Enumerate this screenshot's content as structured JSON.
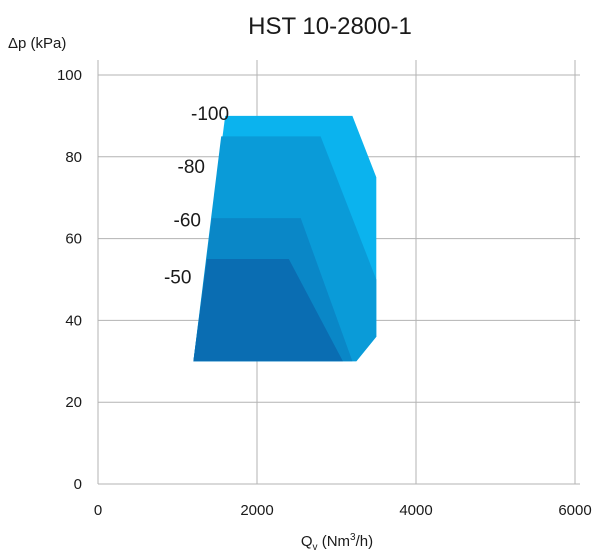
{
  "chart_data": {
    "type": "area",
    "title": "HST 10-2800-1",
    "ylabel": "Δp (kPa)",
    "xlabel": {
      "main": "Q",
      "sub": "v",
      "unit_pre": " (Nm",
      "sup": "3",
      "unit_post": "/h)"
    },
    "xlim": [
      0,
      6000
    ],
    "ylim": [
      0,
      100
    ],
    "x_ticks": [
      "0",
      "2000",
      "4000",
      "6000"
    ],
    "y_ticks": [
      "0",
      "20",
      "40",
      "60",
      "80",
      "100"
    ],
    "x_tick_values": [
      0,
      2000,
      4000,
      6000
    ],
    "y_tick_values": [
      0,
      20,
      40,
      60,
      80,
      100
    ],
    "grid": true,
    "series": [
      {
        "label": "-100",
        "color": "#0bb3ee",
        "points": [
          [
            1600,
            90
          ],
          [
            3200,
            90
          ],
          [
            3500,
            75
          ],
          [
            3500,
            36
          ],
          [
            3250,
            30
          ],
          [
            1200,
            30
          ]
        ]
      },
      {
        "label": "-80",
        "color": "#0a9bd8",
        "points": [
          [
            1550,
            85
          ],
          [
            2800,
            85
          ],
          [
            3500,
            50
          ],
          [
            3500,
            36
          ],
          [
            3250,
            30
          ],
          [
            1200,
            30
          ]
        ]
      },
      {
        "label": "-60",
        "color": "#0a87c7",
        "points": [
          [
            1430,
            65
          ],
          [
            2550,
            65
          ],
          [
            3200,
            30
          ],
          [
            1200,
            30
          ]
        ]
      },
      {
        "label": "-50",
        "color": "#0a6db2",
        "points": [
          [
            1370,
            55
          ],
          [
            2400,
            55
          ],
          [
            3080,
            30
          ],
          [
            1200,
            30
          ]
        ]
      }
    ],
    "annotations": [
      {
        "text": "-100",
        "x": 1170,
        "y": 89
      },
      {
        "text": "-80",
        "x": 1000,
        "y": 76
      },
      {
        "text": "-60",
        "x": 950,
        "y": 63
      },
      {
        "text": "-50",
        "x": 830,
        "y": 49
      }
    ]
  }
}
